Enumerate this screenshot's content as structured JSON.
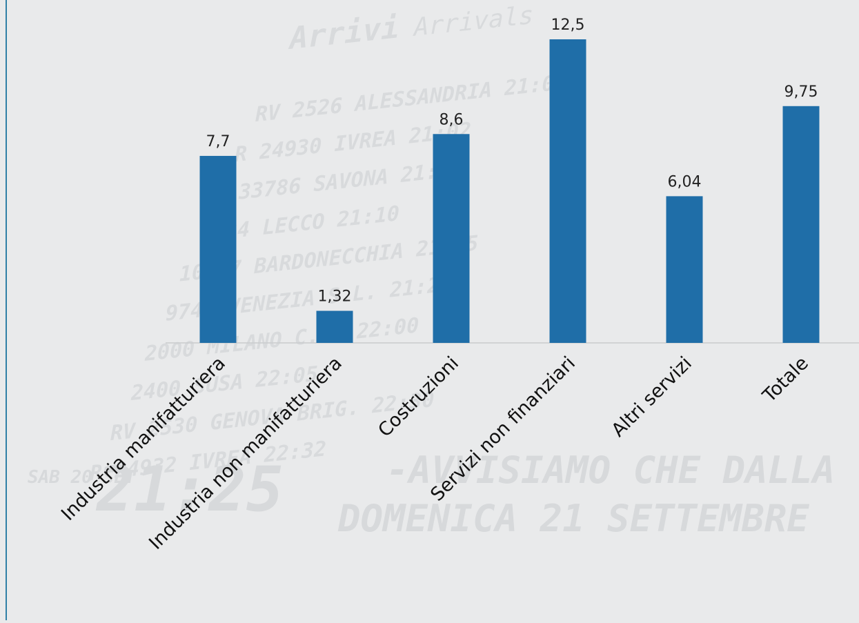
{
  "chart_data": {
    "type": "bar",
    "categories": [
      "Industria manifatturiera",
      "Industria non manifatturiera",
      "Costruzioni",
      "Servizi non finanziari",
      "Altri servizi",
      "Totale"
    ],
    "values": [
      7.7,
      1.32,
      8.6,
      12.5,
      6.04,
      9.75
    ],
    "value_labels": [
      "7,7",
      "1,32",
      "8,6",
      "12,5",
      "6,04",
      "9,75"
    ],
    "title": "",
    "xlabel": "",
    "ylabel": "",
    "ylim": [
      0,
      12.5
    ],
    "grid": false,
    "legend": "none",
    "bar_color": "#1f6ea8"
  },
  "background": {
    "board_title": "Arrivi",
    "board_subtitle": "Arrivals",
    "rows": [
      "RV 2526 ALESSANDRIA 21:00",
      "R 24930 IVREA 21:02",
      "R 33786 SAVONA 21:05",
      "9824 LECCO 21:10",
      "10027 BARDONECCHIA 21:15",
      "9740 VENEZIA S.L. 21:20",
      "2000 MILANO C.LE 22:00",
      "2400 SUSA 22:05",
      "RV 2530 GENOVA BRIG. 22:30",
      "R 24932 IVREA 22:32"
    ],
    "clock_day": "SAB 20 SET",
    "clock_time": "21:25",
    "ticker_1": "-AVVISIAMO CHE DALLA",
    "ticker_2": "DOMENICA 21 SETTEMBRE"
  }
}
